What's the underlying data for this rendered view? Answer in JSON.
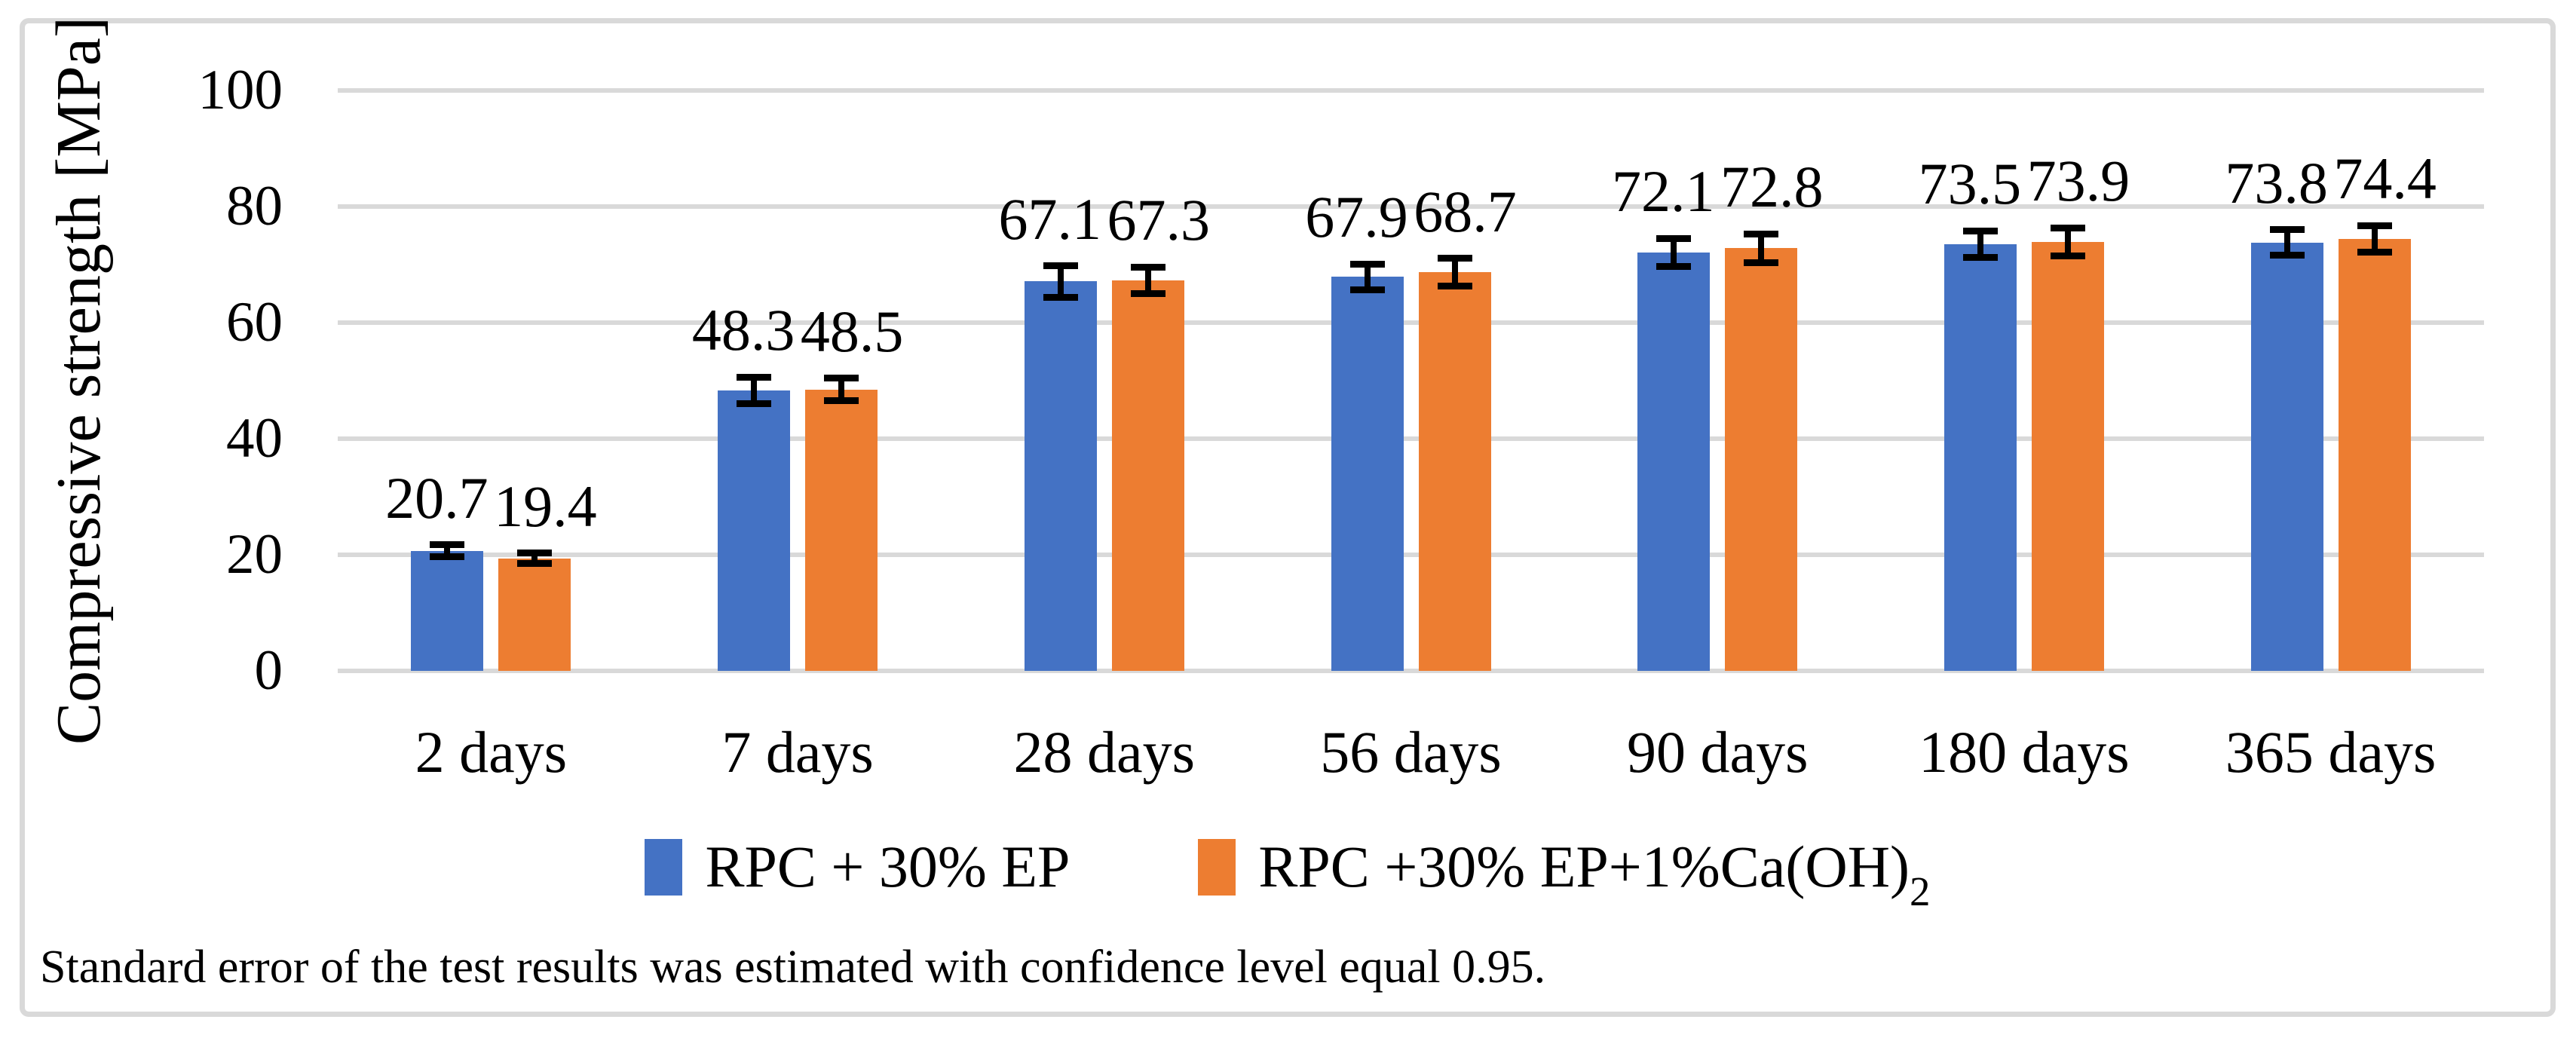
{
  "chart_data": {
    "type": "bar",
    "title": "",
    "xlabel": "",
    "ylabel": "Compressive strength [MPa]",
    "ylim": [
      0,
      100
    ],
    "yticks": [
      0,
      20,
      40,
      60,
      80,
      100
    ],
    "grid": "horizontal",
    "value_labels": "outside end, one decimal",
    "legend_position": "bottom",
    "categories": [
      "2 days",
      "7 days",
      "28 days",
      "56 days",
      "90 days",
      "180 days",
      "365 days"
    ],
    "series": [
      {
        "name": "RPC + 30% EP",
        "color": "#4472C4",
        "values": [
          20.7,
          48.3,
          67.1,
          67.9,
          72.1,
          73.5,
          73.8
        ],
        "errors": [
          1.0,
          2.3,
          2.7,
          2.2,
          2.4,
          2.3,
          2.2
        ]
      },
      {
        "name": "RPC +30% EP+1%Ca(OH)₂",
        "color": "#ED7D31",
        "values": [
          19.4,
          48.5,
          67.3,
          68.7,
          72.8,
          73.9,
          74.4
        ],
        "errors": [
          0.9,
          1.9,
          2.3,
          2.4,
          2.5,
          2.4,
          2.3
        ]
      }
    ]
  },
  "legend": {
    "items": [
      {
        "label": "RPC + 30% EP",
        "label_sub": "",
        "color": "#4472C4"
      },
      {
        "label": "RPC +30% EP+1%Ca(OH)",
        "label_sub": "2",
        "color": "#ED7D31"
      }
    ]
  },
  "footnote": "Standard error of the test results was estimated with confidence level equal 0.95.",
  "colors": {
    "series_blue": "#4472C4",
    "series_orange": "#ED7D31",
    "gridline": "#D9D9D9",
    "frame_border": "#D9D9D9",
    "error_bar": "#000000",
    "text": "#000000",
    "background": "#FFFFFF"
  }
}
